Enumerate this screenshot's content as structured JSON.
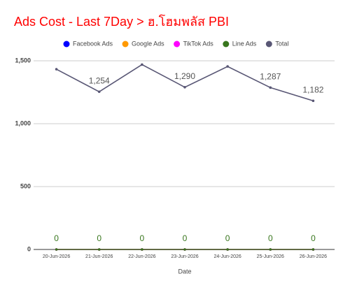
{
  "chart_data": {
    "type": "line",
    "title": "Ads Cost - Last 7Day > ฮ.โฮมพลัส PBI",
    "x_label": "Date",
    "categories": [
      "20-Jun-2026",
      "21-Jun-2026",
      "22-Jun-2026",
      "23-Jun-2026",
      "24-Jun-2026",
      "25-Jun-2026",
      "26-Jun-2026"
    ],
    "series": [
      {
        "name": "Facebook Ads",
        "color": "#0000ff",
        "values": [
          0,
          0,
          0,
          0,
          0,
          0,
          0
        ]
      },
      {
        "name": "Google Ads",
        "color": "#ff9900",
        "values": [
          0,
          0,
          0,
          0,
          0,
          0,
          0
        ]
      },
      {
        "name": "TikTok Ads",
        "color": "#ff00ff",
        "values": [
          0,
          0,
          0,
          0,
          0,
          0,
          0
        ]
      },
      {
        "name": "Line Ads",
        "color": "#38761d",
        "values": [
          0,
          0,
          0,
          0,
          0,
          0,
          0
        ],
        "value_labels": [
          "0",
          "0",
          "0",
          "0",
          "0",
          "0",
          "0"
        ]
      },
      {
        "name": "Total",
        "color": "#595775",
        "values": [
          1433,
          1254,
          1470,
          1290,
          1455,
          1287,
          1182
        ],
        "value_labels": [
          null,
          "1,254",
          null,
          "1,290",
          null,
          "1,287",
          "1,182"
        ]
      }
    ],
    "ylim": [
      0,
      1500
    ],
    "yticks": [
      0,
      500,
      {
        "value": 1000,
        "label": "1,000"
      },
      {
        "value": 1500,
        "label": "1,500"
      }
    ],
    "grid": true
  }
}
